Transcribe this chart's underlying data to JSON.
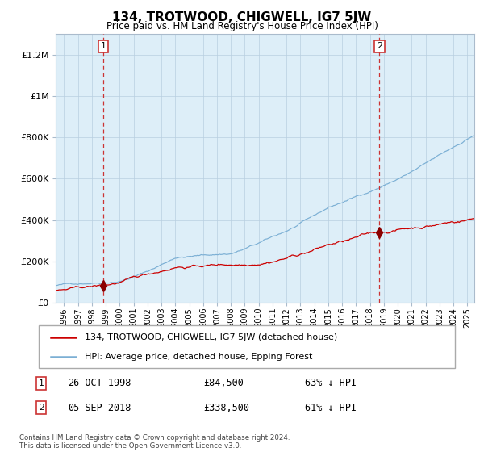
{
  "title": "134, TROTWOOD, CHIGWELL, IG7 5JW",
  "subtitle": "Price paid vs. HM Land Registry's House Price Index (HPI)",
  "legend_line1": "134, TROTWOOD, CHIGWELL, IG7 5JW (detached house)",
  "legend_line2": "HPI: Average price, detached house, Epping Forest",
  "purchase1_date": "26-OCT-1998",
  "purchase1_price": 84500,
  "purchase1_label": "63% ↓ HPI",
  "purchase2_date": "05-SEP-2018",
  "purchase2_price": 338500,
  "purchase2_label": "61% ↓ HPI",
  "footnote": "Contains HM Land Registry data © Crown copyright and database right 2024.\nThis data is licensed under the Open Government Licence v3.0.",
  "hpi_color": "#7bafd4",
  "price_color": "#cc0000",
  "marker_color": "#8b0000",
  "dashed_line_color": "#cc3333",
  "bg_color": "#ddeef8",
  "grid_color": "#b8cfe0",
  "ylim": [
    0,
    1300000
  ],
  "xlim_start": 1995.4,
  "xlim_end": 2025.5,
  "purchase1_year": 1998.82,
  "purchase2_year": 2018.67
}
